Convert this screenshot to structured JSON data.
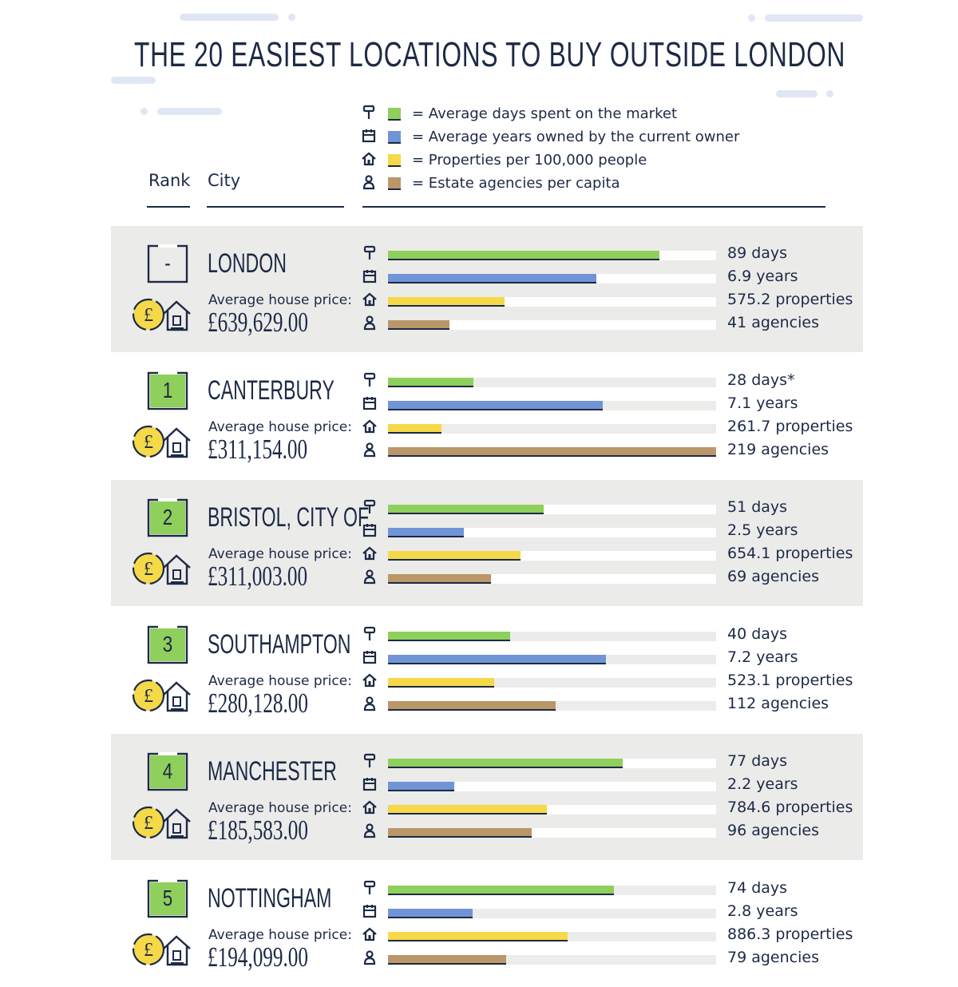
{
  "title": "THE 20 EASIEST LOCATIONS TO BUY OUTSIDE LONDON",
  "headers": {
    "rank": "Rank",
    "city": "City"
  },
  "legend": [
    {
      "icon": "signpost-icon",
      "color": "#8fcf5b",
      "text": "= Average days spent on the market"
    },
    {
      "icon": "calendar-icon",
      "color": "#7194d6",
      "text": "= Average years owned by the current owner"
    },
    {
      "icon": "house-icon",
      "color": "#f5d949",
      "text": "= Properties per 100,000 people"
    },
    {
      "icon": "person-icon",
      "color": "#b99769",
      "text": "= Estate agencies per capita"
    }
  ],
  "avg_label": "Average house price:",
  "rows": [
    {
      "rank": "-",
      "city": "LONDON",
      "price": "£639,629.00",
      "values": [
        "89 days",
        "6.9 years",
        "575.2 properties",
        "41 agencies"
      ]
    },
    {
      "rank": "1",
      "city": "CANTERBURY",
      "price": "£311,154.00",
      "values": [
        "28 days*",
        "7.1 years",
        "261.7 properties",
        "219 agencies"
      ]
    },
    {
      "rank": "2",
      "city": "BRISTOL, CITY OF",
      "price": "£311,003.00",
      "values": [
        "51 days",
        "2.5 years",
        "654.1 properties",
        "69 agencies"
      ]
    },
    {
      "rank": "3",
      "city": "SOUTHAMPTON",
      "price": "£280,128.00",
      "values": [
        "40 days",
        "7.2 years",
        "523.1 properties",
        "112 agencies"
      ]
    },
    {
      "rank": "4",
      "city": "MANCHESTER",
      "price": "£185,583.00",
      "values": [
        "77 days",
        "2.2 years",
        "784.6 properties",
        "96 agencies"
      ]
    },
    {
      "rank": "5",
      "city": "NOTTINGHAM",
      "price": "£194,099.00",
      "values": [
        "74 days",
        "2.8 years",
        "886.3 properties",
        "79 agencies"
      ]
    }
  ],
  "chart_data": {
    "type": "bar",
    "title": "THE 20 EASIEST LOCATIONS TO BUY OUTSIDE LONDON",
    "categories": [
      "LONDON",
      "CANTERBURY",
      "BRISTOL, CITY OF",
      "SOUTHAMPTON",
      "MANCHESTER",
      "NOTTINGHAM"
    ],
    "series": [
      {
        "name": "Average days spent on the market",
        "color": "#8fcf5b",
        "values": [
          89,
          28,
          51,
          40,
          77,
          74
        ]
      },
      {
        "name": "Average years owned by the current owner",
        "color": "#7194d6",
        "values": [
          6.9,
          7.1,
          2.5,
          7.2,
          2.2,
          2.8
        ]
      },
      {
        "name": "Properties per 100,000 people",
        "color": "#f5d949",
        "values": [
          575.2,
          261.7,
          654.1,
          523.1,
          784.6,
          886.3
        ]
      },
      {
        "name": "Estate agencies per capita",
        "color": "#b99769",
        "values": [
          41,
          219,
          69,
          112,
          96,
          79
        ]
      }
    ],
    "scale_max": [
      107.6,
      10.85,
      1617,
      219
    ],
    "average_house_price": [
      "£639,629.00",
      "£311,154.00",
      "£311,003.00",
      "£280,128.00",
      "£185,583.00",
      "£194,099.00"
    ]
  }
}
